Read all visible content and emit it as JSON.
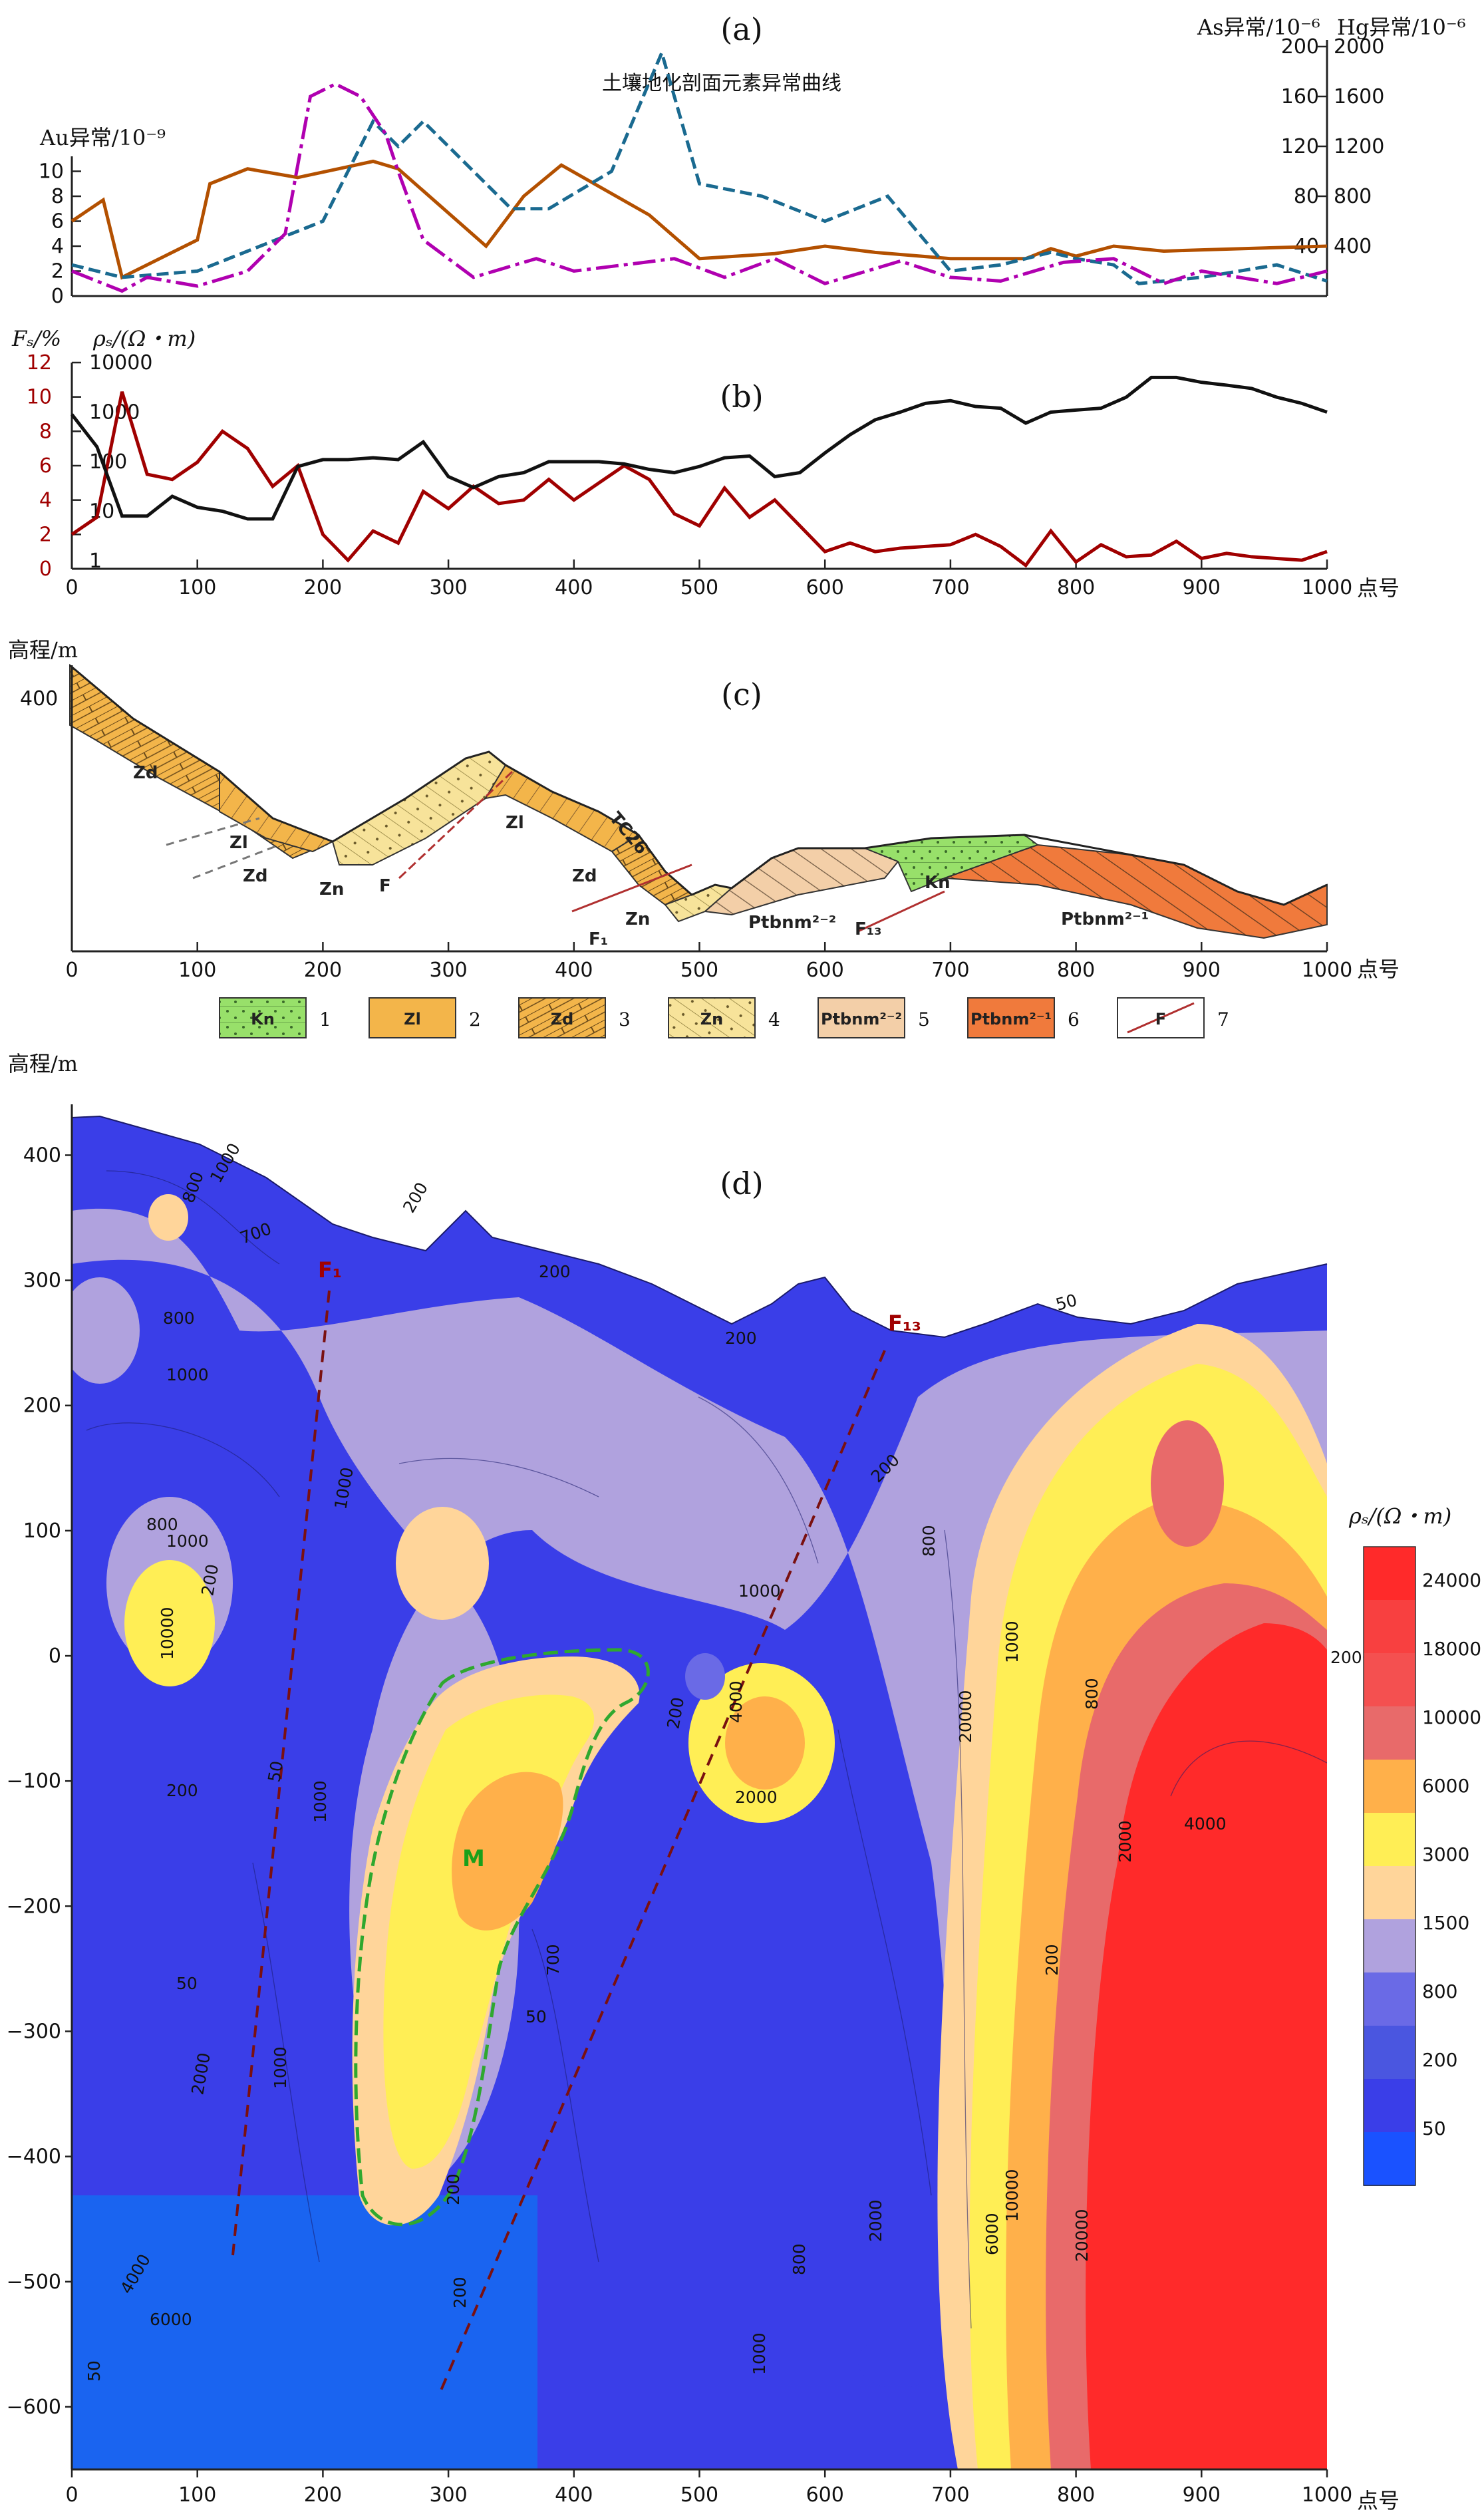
{
  "colors": {
    "au": "#b35000",
    "as": "#1a6a90",
    "hg": "#b000b0",
    "fs": "#a00000",
    "rho": "#111111",
    "ramp": [
      "#1a52ff",
      "#3a3ee8",
      "#4a56e0",
      "#6a6ae6",
      "#b0a2de",
      "#ffd59a",
      "#ffee55",
      "#ffb04a",
      "#e86a6a",
      "#f45050",
      "#f84040",
      "#ff2a2a"
    ]
  },
  "panels": {
    "a": {
      "label": "(a)",
      "subtitle": "土壤地化剖面元素异常曲线",
      "left_axis": "Au异常/10⁻⁹",
      "right_axis_1": "As异常/10⁻⁶",
      "right_axis_2": "Hg异常/10⁻⁶"
    },
    "b": {
      "label": "(b)",
      "left_axis_1": "Fₛ/%",
      "left_axis_2": "ρₛ/(Ω・m)"
    },
    "c": {
      "label": "(c)",
      "y_axis": "高程/m"
    },
    "d": {
      "label": "(d)",
      "y_axis": "高程/m",
      "colorbar_title": "ρₛ/(Ω・m)"
    }
  },
  "x_unit": "点号",
  "x_ticks": [
    "0",
    "100",
    "200",
    "300",
    "400",
    "500",
    "600",
    "700",
    "800",
    "900",
    "1000"
  ],
  "geology": {
    "formations": [
      "Zd",
      "Zl",
      "Zd",
      "Zl",
      "Zd",
      "Zn",
      "F",
      "Zl",
      "TC26",
      "Zd",
      "Zn",
      "F₁",
      "Ptbnm²⁻²",
      "F₁₃",
      "Kn",
      "Ptbnm²⁻¹"
    ],
    "elev_tick": "400"
  },
  "legend": [
    {
      "code": "Kn",
      "num": "1",
      "color": "#98e06a"
    },
    {
      "code": "Zl",
      "num": "2",
      "color": "#f3b54a"
    },
    {
      "code": "Zd",
      "num": "3",
      "color": "#f3b54a"
    },
    {
      "code": "Zn",
      "num": "4",
      "color": "#f7e39a"
    },
    {
      "code": "Ptbnm²⁻²",
      "num": "5",
      "color": "#f3cfa8"
    },
    {
      "code": "Ptbnm²⁻¹",
      "num": "6",
      "color": "#f07a3c"
    },
    {
      "code": "F",
      "num": "7",
      "color": "#ffffff"
    }
  ],
  "contour_section": {
    "y_ticks": [
      "400",
      "300",
      "200",
      "100",
      "0",
      "−100",
      "−200",
      "−300",
      "−400",
      "−500",
      "−600"
    ],
    "faults": [
      "F₁",
      "F₁₃"
    ],
    "marker": "M",
    "colorbar_labels": [
      "24000",
      "18000",
      "10000",
      "6000",
      "3000",
      "1500",
      "800",
      "200",
      "50"
    ],
    "contour_labels": [
      "800",
      "1000",
      "700",
      "200",
      "200",
      "200",
      "800",
      "1000",
      "800",
      "1000",
      "200",
      "200",
      "50",
      "50",
      "2000",
      "4000",
      "6000",
      "10000",
      "20000",
      "1000",
      "800",
      "2000",
      "4000",
      "200",
      "2000",
      "1000",
      "50",
      "200",
      "700",
      "1000",
      "1000",
      "2000",
      "2000",
      "4000",
      "6000",
      "10000",
      "20000",
      "200",
      "1000",
      "800",
      "200",
      "50",
      "50",
      "200",
      "800",
      "1000"
    ]
  },
  "chart_data": [
    {
      "type": "line",
      "title": "土壤地化剖面元素异常曲线",
      "xlabel": "点号",
      "ylabel": "Au异常/10⁻⁹",
      "xlim": [
        0,
        1000
      ],
      "ylim": [
        0,
        12
      ],
      "y_ticks": [
        "0",
        "2",
        "4",
        "6",
        "8",
        "10"
      ],
      "right_axes": [
        {
          "name": "As异常/10⁻⁶",
          "ticks": [
            "40",
            "80",
            "120",
            "160",
            "200"
          ],
          "lim": [
            0,
            200
          ]
        },
        {
          "name": "Hg异常/10⁻⁶",
          "ticks": [
            "400",
            "800",
            "1200",
            "1600",
            "2000"
          ],
          "lim": [
            0,
            2000
          ]
        }
      ],
      "series": [
        {
          "axis": "left",
          "x": [
            0,
            25,
            40,
            100,
            110,
            140,
            180,
            240,
            260,
            330,
            360,
            390,
            460,
            500,
            560,
            600,
            640,
            700,
            740,
            760,
            780,
            800,
            830,
            870,
            900,
            1000
          ],
          "values": [
            6,
            7.7,
            1.5,
            4.5,
            9,
            10.2,
            9.5,
            10.8,
            10.2,
            4,
            8,
            10.5,
            6.5,
            3,
            3.4,
            4,
            3.5,
            3,
            3,
            3,
            3.8,
            3.2,
            4,
            3.6,
            3.7,
            4
          ]
        },
        {
          "axis": "right_1",
          "x": [
            0,
            40,
            100,
            150,
            200,
            240,
            260,
            280,
            350,
            380,
            430,
            470,
            500,
            550,
            600,
            650,
            700,
            740,
            780,
            800,
            830,
            850,
            900,
            960,
            1000
          ],
          "values": [
            25,
            15,
            20,
            40,
            60,
            140,
            120,
            140,
            70,
            70,
            100,
            195,
            90,
            80,
            60,
            80,
            20,
            25,
            35,
            30,
            25,
            10,
            15,
            25,
            12
          ]
        },
        {
          "axis": "right_2",
          "x": [
            0,
            40,
            60,
            100,
            140,
            170,
            190,
            210,
            230,
            250,
            260,
            280,
            320,
            370,
            400,
            480,
            520,
            560,
            600,
            660,
            700,
            740,
            790,
            830,
            870,
            900,
            960,
            1000
          ],
          "values": [
            200,
            40,
            150,
            80,
            200,
            500,
            1600,
            1700,
            1600,
            1300,
            1000,
            450,
            150,
            300,
            200,
            300,
            150,
            300,
            100,
            280,
            150,
            120,
            270,
            300,
            100,
            200,
            100,
            200
          ]
        }
      ]
    },
    {
      "type": "line",
      "xlabel": "点号",
      "xlim": [
        0,
        1000
      ],
      "left_axis_1": {
        "name": "Fₛ/%",
        "ticks": [
          "0",
          "2",
          "4",
          "6",
          "8",
          "10",
          "12"
        ],
        "lim": [
          0,
          12
        ]
      },
      "left_axis_2": {
        "name": "ρₛ/(Ω・m)",
        "ticks": [
          "1",
          "10",
          "100",
          "1000",
          "10000"
        ],
        "scale": "log",
        "lim": [
          1,
          10000
        ]
      },
      "series": [
        {
          "axis": "left_1",
          "x": [
            0,
            20,
            40,
            60,
            80,
            100,
            120,
            140,
            160,
            180,
            200,
            220,
            240,
            260,
            280,
            300,
            320,
            340,
            360,
            380,
            400,
            420,
            440,
            460,
            480,
            500,
            520,
            540,
            560,
            580,
            600,
            620,
            640,
            660,
            680,
            700,
            720,
            740,
            760,
            780,
            800,
            820,
            840,
            860,
            880,
            900,
            920,
            940,
            960,
            980,
            1000
          ],
          "values": [
            2,
            3,
            10.3,
            5.5,
            5.2,
            6.2,
            8,
            7,
            4.8,
            6,
            2,
            0.5,
            2.2,
            1.5,
            4.5,
            3.5,
            4.8,
            3.8,
            4,
            5.2,
            4,
            5,
            6,
            5.2,
            3.2,
            2.5,
            4.7,
            3,
            4,
            2.5,
            1,
            1.5,
            1,
            1.2,
            1.3,
            1.4,
            2,
            1.3,
            0.2,
            2.2,
            0.4,
            1.4,
            0.7,
            0.8,
            1.6,
            0.6,
            0.9,
            0.7,
            0.6,
            0.5,
            1
          ]
        },
        {
          "axis": "left_2",
          "x": [
            0,
            20,
            40,
            60,
            80,
            100,
            120,
            140,
            160,
            180,
            200,
            220,
            240,
            260,
            280,
            300,
            320,
            340,
            360,
            380,
            400,
            420,
            440,
            460,
            480,
            500,
            520,
            540,
            560,
            580,
            600,
            620,
            640,
            660,
            680,
            700,
            720,
            740,
            760,
            780,
            800,
            820,
            840,
            860,
            880,
            900,
            920,
            940,
            960,
            980,
            1000
          ],
          "values": [
            900,
            200,
            8,
            8,
            20,
            12,
            10,
            7,
            7,
            80,
            110,
            110,
            120,
            110,
            250,
            50,
            30,
            50,
            60,
            100,
            100,
            100,
            90,
            70,
            60,
            80,
            120,
            130,
            50,
            60,
            150,
            350,
            700,
            1000,
            1500,
            1700,
            1300,
            1200,
            600,
            1000,
            1100,
            1200,
            2000,
            5000,
            5000,
            4000,
            3500,
            3000,
            2000,
            1500,
            1000
          ]
        }
      ]
    },
    {
      "type": "heatmap",
      "xlabel": "点号",
      "ylabel": "高程/m",
      "xlim": [
        0,
        1000
      ],
      "ylim": [
        -650,
        430
      ],
      "colorbar": {
        "title": "ρₛ/(Ω・m)",
        "levels": [
          50,
          200,
          800,
          1500,
          3000,
          6000,
          10000,
          18000,
          24000
        ]
      }
    }
  ]
}
